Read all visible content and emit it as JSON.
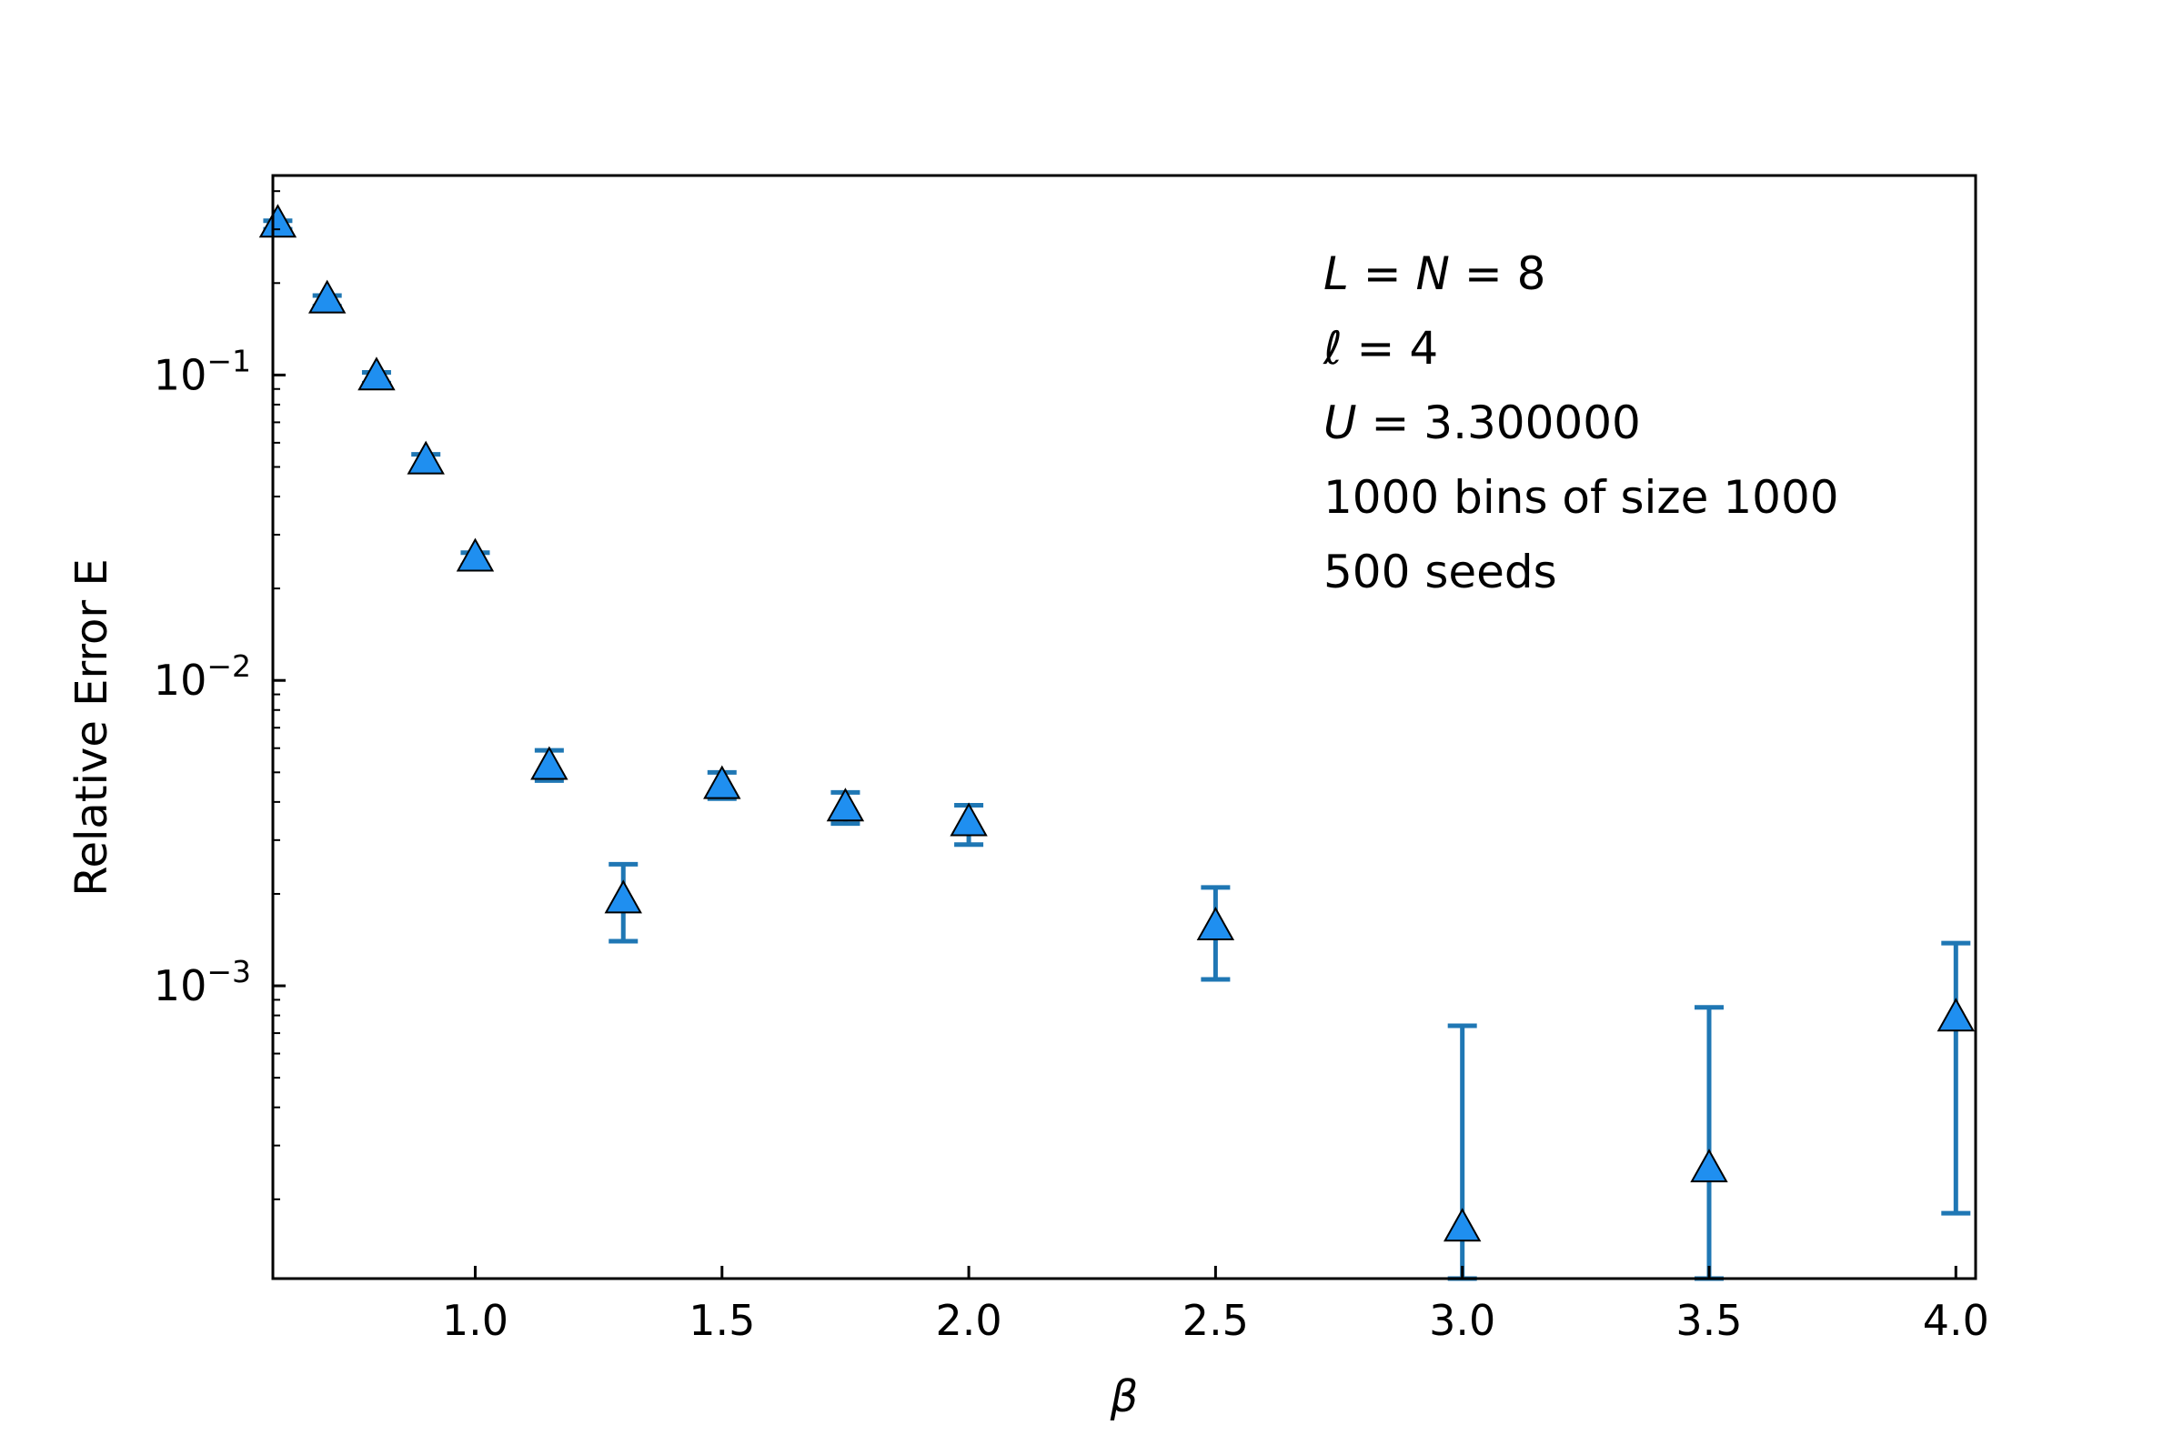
{
  "chart_data": {
    "type": "scatter",
    "xlabel": "β",
    "ylabel": "Relative Error E",
    "xlim": [
      0.59,
      4.04
    ],
    "ylim": [
      0.00011,
      0.45
    ],
    "yscale": "log",
    "grid": false,
    "legend": "none",
    "x_ticks": [
      {
        "value": 1.0,
        "label": "1.0"
      },
      {
        "value": 1.5,
        "label": "1.5"
      },
      {
        "value": 2.0,
        "label": "2.0"
      },
      {
        "value": 2.5,
        "label": "2.5"
      },
      {
        "value": 3.0,
        "label": "3.0"
      },
      {
        "value": 3.5,
        "label": "3.5"
      },
      {
        "value": 4.0,
        "label": "4.0"
      }
    ],
    "y_ticks": [
      {
        "value": 0.1,
        "base": "10",
        "exp": "−1"
      },
      {
        "value": 0.01,
        "base": "10",
        "exp": "−2"
      },
      {
        "value": 0.001,
        "base": "10",
        "exp": "−3"
      }
    ],
    "series": [
      {
        "marker": "triangle-up",
        "marker_color": "#1f8ff0",
        "errorbar_color": "#1f77b4",
        "points": [
          {
            "x": 0.6,
            "y": 0.31,
            "lo": 0.3,
            "hi": 0.32
          },
          {
            "x": 0.7,
            "y": 0.175,
            "lo": 0.168,
            "hi": 0.182
          },
          {
            "x": 0.8,
            "y": 0.098,
            "lo": 0.094,
            "hi": 0.102
          },
          {
            "x": 0.9,
            "y": 0.052,
            "lo": 0.049,
            "hi": 0.055
          },
          {
            "x": 1.0,
            "y": 0.025,
            "lo": 0.0238,
            "hi": 0.0262
          },
          {
            "x": 1.15,
            "y": 0.0052,
            "lo": 0.0047,
            "hi": 0.0059
          },
          {
            "x": 1.3,
            "y": 0.0019,
            "lo": 0.0014,
            "hi": 0.0025
          },
          {
            "x": 1.5,
            "y": 0.0045,
            "lo": 0.0041,
            "hi": 0.005
          },
          {
            "x": 1.75,
            "y": 0.0038,
            "lo": 0.0034,
            "hi": 0.0043
          },
          {
            "x": 2.0,
            "y": 0.0034,
            "lo": 0.0029,
            "hi": 0.0039
          },
          {
            "x": 2.5,
            "y": 0.00155,
            "lo": 0.00105,
            "hi": 0.0021
          },
          {
            "x": 3.0,
            "y": 0.00016,
            "lo": 0.00011,
            "hi": 0.00074
          },
          {
            "x": 3.5,
            "y": 0.00025,
            "lo": 0.00011,
            "hi": 0.00085
          },
          {
            "x": 4.0,
            "y": 0.00078,
            "lo": 0.00018,
            "hi": 0.00138
          }
        ]
      }
    ],
    "annotations": [
      {
        "italic": "L",
        "text": " = ",
        "italic2": "N",
        "text2": " = 8"
      },
      {
        "italic": "ℓ",
        "text": " = 4",
        "italic2": "",
        "text2": ""
      },
      {
        "italic": "U",
        "text": " = 3.300000",
        "italic2": "",
        "text2": ""
      },
      {
        "italic": "",
        "text": "1000 bins of size 1000",
        "italic2": "",
        "text2": ""
      },
      {
        "italic": "",
        "text": "500 seeds",
        "italic2": "",
        "text2": ""
      }
    ]
  }
}
